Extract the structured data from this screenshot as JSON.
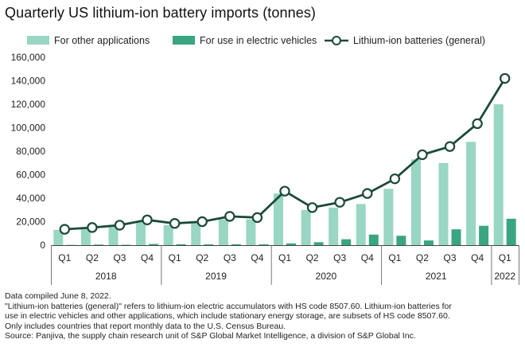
{
  "chart_data": {
    "type": "bar",
    "title": "Quarterly US lithium-ion battery imports (tonnes)",
    "categories": [
      "Q1",
      "Q2",
      "Q3",
      "Q4",
      "Q1",
      "Q2",
      "Q3",
      "Q4",
      "Q1",
      "Q2",
      "Q3",
      "Q4",
      "Q1",
      "Q2",
      "Q3",
      "Q4",
      "Q1"
    ],
    "years": [
      {
        "label": "2018",
        "count": 4
      },
      {
        "label": "2019",
        "count": 4
      },
      {
        "label": "2020",
        "count": 4
      },
      {
        "label": "2021",
        "count": 4
      },
      {
        "label": "2022",
        "count": 1
      }
    ],
    "ylim": [
      0,
      160000
    ],
    "yticks": [
      "0",
      "20,000",
      "40,000",
      "60,000",
      "80,000",
      "100,000",
      "120,000",
      "140,000",
      "160,000"
    ],
    "legend_position": "top",
    "series": [
      {
        "name": "For other applications",
        "kind": "bar",
        "color": "#99d6c4",
        "values": [
          13000,
          14000,
          17000,
          20000,
          17000,
          19000,
          22000,
          22000,
          44000,
          30000,
          32000,
          35000,
          48000,
          73000,
          70000,
          88000,
          120000
        ]
      },
      {
        "name": "For use in electric vehicles",
        "kind": "bar",
        "color": "#3aa581",
        "values": [
          200,
          500,
          300,
          1000,
          800,
          700,
          800,
          700,
          1500,
          2500,
          5000,
          9000,
          8000,
          4000,
          13500,
          16500,
          22500
        ]
      },
      {
        "name": "Lithium-ion batteries (general)",
        "kind": "line",
        "color": "#1d4a39",
        "values": [
          13500,
          15000,
          17000,
          21500,
          18500,
          20000,
          24500,
          23500,
          46000,
          32000,
          36500,
          44000,
          56500,
          77000,
          84000,
          103500,
          142000
        ]
      }
    ]
  },
  "footnotes": [
    "Data compiled June 8, 2022.",
    "\"Lithium-ion batteries (general)\" refers to lithium-ion electric accumulators with HS code 8507.60. Lithium-ion batteries for",
    "use in electric vehicles and other applications, which include stationary energy storage, are subsets of HS code 8507.60.",
    "Only includes countries that report monthly data to the U.S. Census Bureau.",
    "Source: Panjiva, the supply chain research unit of S&P Global Market Intelligence, a division of S&P Global Inc."
  ]
}
